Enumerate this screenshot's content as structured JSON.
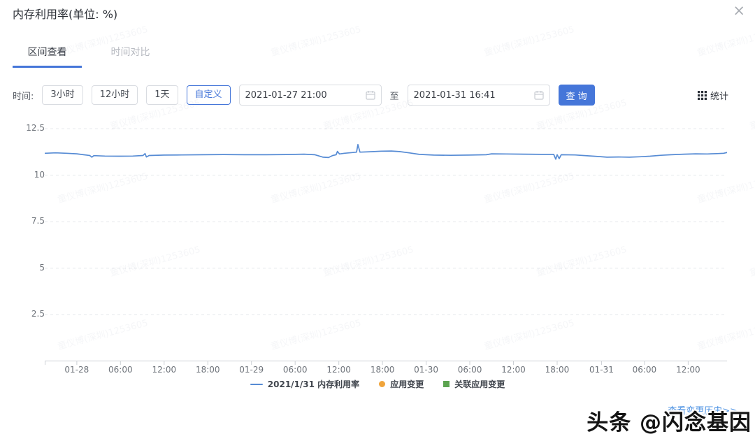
{
  "modal": {
    "title": "内存利用率(单位: %)",
    "close_icon": "×"
  },
  "tabs": [
    {
      "label": "区间查看",
      "active": true
    },
    {
      "label": "时间对比",
      "active": false
    }
  ],
  "filters": {
    "time_label": "时间:",
    "range_buttons": [
      {
        "label": "3小时",
        "selected": false
      },
      {
        "label": "12小时",
        "selected": false
      },
      {
        "label": "1天",
        "selected": false
      },
      {
        "label": "自定义",
        "selected": true
      }
    ],
    "start_time": "2021-01-27 21:00",
    "to_label": "至",
    "end_time": "2021-01-31 16:41",
    "query_button": "查 询",
    "stats_button": "统计"
  },
  "chart_data": {
    "type": "line",
    "title": "内存利用率(单位: %)",
    "xlabel": "",
    "ylabel": "",
    "x_range": [
      "2021-01-27 21:00",
      "2021-01-31 16:41"
    ],
    "ylim": [
      0,
      13.03
    ],
    "grid": "dashed-horizontal",
    "legend_position": "bottom-center",
    "y_ticks": [
      {
        "label": "12.5",
        "value": 12.5
      },
      {
        "label": "10",
        "value": 10
      },
      {
        "label": "7.5",
        "value": 7.5
      },
      {
        "label": "5",
        "value": 5
      },
      {
        "label": "2.5",
        "value": 2.5
      }
    ],
    "x_ticks": [
      {
        "label": "01-28",
        "x": 0.047
      },
      {
        "label": "06:00",
        "x": 0.111
      },
      {
        "label": "12:00",
        "x": 0.175
      },
      {
        "label": "18:00",
        "x": 0.239
      },
      {
        "label": "01-29",
        "x": 0.303
      },
      {
        "label": "06:00",
        "x": 0.367
      },
      {
        "label": "12:00",
        "x": 0.431
      },
      {
        "label": "18:00",
        "x": 0.495
      },
      {
        "label": "01-30",
        "x": 0.559
      },
      {
        "label": "06:00",
        "x": 0.623
      },
      {
        "label": "12:00",
        "x": 0.687
      },
      {
        "label": "18:00",
        "x": 0.751
      },
      {
        "label": "01-31",
        "x": 0.816
      },
      {
        "label": "06:00",
        "x": 0.879
      },
      {
        "label": "12:00",
        "x": 0.943
      }
    ],
    "series": [
      {
        "name": "2021/1/31 内存利用率",
        "color": "#568bd4",
        "points": [
          [
            0.0,
            11.18
          ],
          [
            0.016,
            11.2
          ],
          [
            0.032,
            11.18
          ],
          [
            0.047,
            11.15
          ],
          [
            0.057,
            11.1
          ],
          [
            0.066,
            11.06
          ],
          [
            0.069,
            10.97
          ],
          [
            0.072,
            11.05
          ],
          [
            0.088,
            11.03
          ],
          [
            0.109,
            11.02
          ],
          [
            0.129,
            11.03
          ],
          [
            0.144,
            11.06
          ],
          [
            0.147,
            11.16
          ],
          [
            0.149,
            10.98
          ],
          [
            0.153,
            11.06
          ],
          [
            0.175,
            11.08
          ],
          [
            0.201,
            11.09
          ],
          [
            0.232,
            11.1
          ],
          [
            0.262,
            11.11
          ],
          [
            0.293,
            11.1
          ],
          [
            0.324,
            11.1
          ],
          [
            0.354,
            11.11
          ],
          [
            0.38,
            11.13
          ],
          [
            0.396,
            11.1
          ],
          [
            0.408,
            10.97
          ],
          [
            0.416,
            10.95
          ],
          [
            0.422,
            11.06
          ],
          [
            0.427,
            11.1
          ],
          [
            0.429,
            11.28
          ],
          [
            0.432,
            11.14
          ],
          [
            0.439,
            11.18
          ],
          [
            0.452,
            11.22
          ],
          [
            0.457,
            11.24
          ],
          [
            0.459,
            11.65
          ],
          [
            0.462,
            11.24
          ],
          [
            0.477,
            11.26
          ],
          [
            0.493,
            11.29
          ],
          [
            0.508,
            11.3
          ],
          [
            0.52,
            11.27
          ],
          [
            0.534,
            11.2
          ],
          [
            0.549,
            11.12
          ],
          [
            0.57,
            11.08
          ],
          [
            0.595,
            11.07
          ],
          [
            0.621,
            11.08
          ],
          [
            0.647,
            11.1
          ],
          [
            0.655,
            11.15
          ],
          [
            0.677,
            11.14
          ],
          [
            0.703,
            11.13
          ],
          [
            0.728,
            11.12
          ],
          [
            0.746,
            11.12
          ],
          [
            0.749,
            10.86
          ],
          [
            0.751,
            11.1
          ],
          [
            0.754,
            10.89
          ],
          [
            0.757,
            11.1
          ],
          [
            0.777,
            11.09
          ],
          [
            0.797,
            11.04
          ],
          [
            0.814,
            11.0
          ],
          [
            0.824,
            10.97
          ],
          [
            0.841,
            10.98
          ],
          [
            0.857,
            10.97
          ],
          [
            0.872,
            10.99
          ],
          [
            0.887,
            11.02
          ],
          [
            0.903,
            11.07
          ],
          [
            0.918,
            11.1
          ],
          [
            0.937,
            11.13
          ],
          [
            0.954,
            11.15
          ],
          [
            0.971,
            11.14
          ],
          [
            0.985,
            11.16
          ],
          [
            0.995,
            11.18
          ],
          [
            1.0,
            11.22
          ]
        ]
      }
    ]
  },
  "legend": [
    {
      "label": "2021/1/31 内存利用率",
      "marker": "line",
      "color": "#568bd4"
    },
    {
      "label": "应用变更",
      "marker": "circle",
      "color": "#f0a43a"
    },
    {
      "label": "关联应用变更",
      "marker": "square",
      "color": "#5ca450"
    }
  ],
  "footer": {
    "history_link": "查看变更历史>>"
  },
  "watermark": {
    "tile_text": "童仪博(深圳)1253605",
    "brand_text": "头条 @闪念基因"
  },
  "colors": {
    "accent_blue": "#4576d9",
    "line_blue": "#568bd4",
    "change_orange": "#f0a43a",
    "related_change_green": "#5ca450",
    "link_blue": "#4a90e2"
  }
}
